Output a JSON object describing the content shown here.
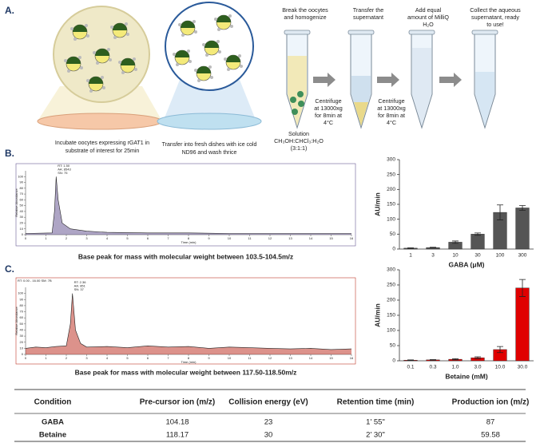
{
  "panel_labels": [
    "A.",
    "B.",
    "C."
  ],
  "panel_a": {
    "captions": [
      [
        "Incubate oocytes expressing rGAT1 in",
        "substrate of interest for 25min"
      ],
      [
        "Transfer into fresh dishes with ice cold",
        "ND96 and wash thrice"
      ]
    ],
    "steps": [
      [
        "Break the oocytes",
        "and homogenize"
      ],
      [
        "Transfer the",
        "supernatant"
      ],
      [
        "Add equal",
        "amount of MilliQ",
        "H₂O"
      ],
      [
        "Collect the aqueous",
        "supernatant, ready",
        "to use!"
      ]
    ],
    "centrifuge": [
      [
        "Centrifuge",
        "at 13000xg",
        "for 8min at",
        "4°C"
      ],
      [
        "Centrifuge",
        "at 13000xg",
        "for 8min at",
        "4°C"
      ]
    ],
    "solution": [
      "Solution",
      "CH₃OH:CHCl₃:H₂O",
      "(3:1:1)"
    ]
  },
  "chart_data": [
    {
      "type": "line",
      "caption": "Base peak for mass with molecular weight between 103.5-104.5m/z",
      "annotation": [
        "RT: 1.50",
        "AA: 8543",
        "SN: 75"
      ],
      "x_label": "Time (min)",
      "y_label": "Relative Abundance",
      "x": [
        0,
        1.3,
        1.42,
        1.5,
        1.6,
        1.8,
        2.2,
        3,
        4,
        6,
        8,
        10,
        12,
        14,
        16
      ],
      "values": [
        2,
        3,
        40,
        100,
        60,
        20,
        10,
        6,
        4,
        3,
        3,
        2,
        2,
        2,
        2
      ],
      "color": "#6b5b95",
      "xlim": [
        0,
        16
      ],
      "ylim": [
        0,
        110
      ],
      "xticks": [
        0,
        1,
        2,
        3,
        4,
        5,
        6,
        7,
        8,
        9,
        10,
        11,
        12,
        13,
        14,
        15,
        16
      ],
      "yticks": [
        0,
        10,
        20,
        30,
        40,
        50,
        60,
        70,
        80,
        90,
        100
      ]
    },
    {
      "type": "bar",
      "x_label": "GABA (μM)",
      "y_label": "AU/min",
      "categories": [
        "1",
        "3",
        "10",
        "30",
        "100",
        "300"
      ],
      "values": [
        3,
        5,
        23,
        50,
        123,
        138
      ],
      "errors": [
        1,
        1,
        4,
        4,
        25,
        8
      ],
      "color": "#555555",
      "ylim": [
        0,
        300
      ],
      "yticks": [
        0,
        50,
        100,
        150,
        200,
        250,
        300
      ]
    },
    {
      "type": "line",
      "caption": "Base peak for mass with molecular weight between 117.50-118.50m/z",
      "header": "RT: 0.00 - 16.00  SM: 7B",
      "annotation": [
        "RT: 2.36",
        "AA: 851",
        "SN: 37"
      ],
      "x_label": "Time (min)",
      "y_label": "Relative Abundance",
      "x": [
        0,
        0.5,
        1,
        1.5,
        2,
        2.2,
        2.3,
        2.45,
        2.7,
        3,
        4,
        5,
        6,
        7,
        8,
        9,
        10,
        11,
        12,
        13,
        14,
        15,
        16
      ],
      "values": [
        10,
        12,
        11,
        13,
        14,
        50,
        100,
        40,
        18,
        12,
        13,
        11,
        14,
        12,
        13,
        10,
        12,
        11,
        10,
        9,
        10,
        8,
        9
      ],
      "color": "#c0392b",
      "xlim": [
        0,
        16
      ],
      "ylim": [
        0,
        110
      ],
      "xticks": [
        0,
        1,
        2,
        3,
        4,
        5,
        6,
        7,
        8,
        9,
        10,
        11,
        12,
        13,
        14,
        15,
        16
      ],
      "yticks": [
        0,
        10,
        20,
        30,
        40,
        50,
        60,
        70,
        80,
        90,
        100
      ]
    },
    {
      "type": "bar",
      "x_label": "Betaine (mM)",
      "y_label": "AU/min",
      "categories": [
        "0.1",
        "0.3",
        "1.0",
        "3.0",
        "10.0",
        "30.0"
      ],
      "values": [
        2,
        3,
        5,
        10,
        37,
        240
      ],
      "errors": [
        1,
        1,
        2,
        3,
        10,
        28
      ],
      "color": "#e00000",
      "ylim": [
        0,
        300
      ],
      "yticks": [
        0,
        50,
        100,
        150,
        200,
        250,
        300
      ]
    }
  ],
  "table": {
    "header": [
      "Condition",
      "Pre-cursor ion (m/z)",
      "Collision energy (eV)",
      "Retention time (min)",
      "Production ion (m/z)"
    ],
    "rows": [
      [
        "GABA",
        104.18,
        23,
        "1' 55\"",
        87
      ],
      [
        "Betaine",
        118.17,
        30,
        "2' 30\"",
        59.58
      ]
    ]
  }
}
